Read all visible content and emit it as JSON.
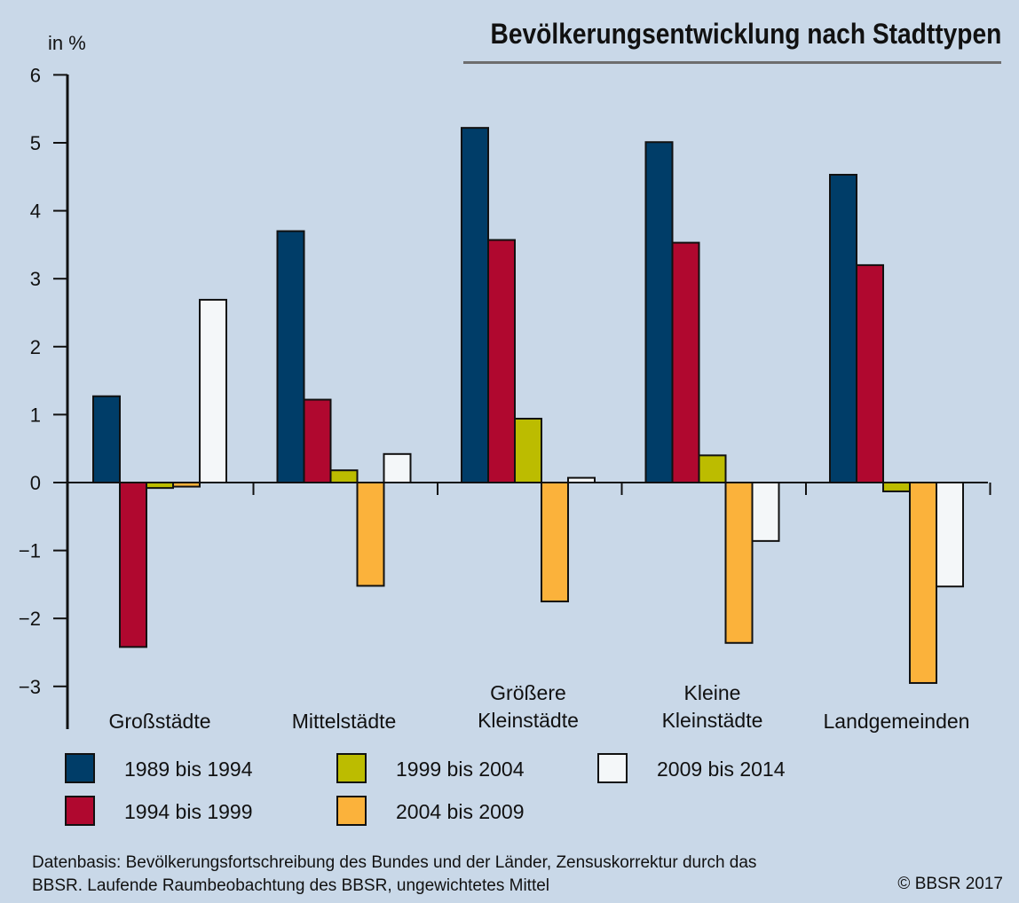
{
  "title": "Bevölkerungsentwicklung nach Stadttypen",
  "footer": {
    "source_line1": "Datenbasis: Bevölkerungsfortschreibung des Bundes und der Länder, Zensuskorrektur durch das",
    "source_line2": "BBSR. Laufende Raumbeobachtung des BBSR, ungewichtetes Mittel",
    "copyright": "© BBSR 2017"
  },
  "chart_data": {
    "type": "bar",
    "title": "Bevölkerungsentwicklung nach Stadttypen",
    "ylabel": "in %",
    "xlabel": "",
    "ylim": [
      -3.5,
      6
    ],
    "yticks": [
      6,
      5,
      4,
      3,
      2,
      1,
      0,
      -1,
      -2,
      -3
    ],
    "ytick_labels": [
      "6",
      "5",
      "4",
      "3",
      "2",
      "1",
      "0",
      "−1",
      "−2",
      "−3"
    ],
    "grid": false,
    "legend_position": "bottom",
    "categories": [
      [
        "Großstädte"
      ],
      [
        "Mittelstädte"
      ],
      [
        "Größere",
        "Kleinstädte"
      ],
      [
        "Kleine",
        "Kleinstädte"
      ],
      [
        "Landgemeinden"
      ]
    ],
    "series": [
      {
        "name": "1989 bis 1994",
        "color": "#003d68",
        "values": [
          1.27,
          3.7,
          5.22,
          5.01,
          4.53
        ]
      },
      {
        "name": "1994 bis 1999",
        "color": "#b0082f",
        "values": [
          -2.42,
          1.22,
          3.57,
          3.53,
          3.2
        ]
      },
      {
        "name": "1999 bis 2004",
        "color": "#bcbc00",
        "values": [
          -0.08,
          0.18,
          0.94,
          0.4,
          -0.13
        ]
      },
      {
        "name": "2004 bis 2009",
        "color": "#fbb23b",
        "values": [
          -0.06,
          -1.52,
          -1.75,
          -2.36,
          -2.95
        ]
      },
      {
        "name": "2009 bis 2014",
        "color": "#f4f7f9",
        "values": [
          2.69,
          0.42,
          0.07,
          -0.86,
          -1.53
        ]
      }
    ],
    "legend_order": [
      0,
      2,
      4,
      1,
      3
    ]
  }
}
